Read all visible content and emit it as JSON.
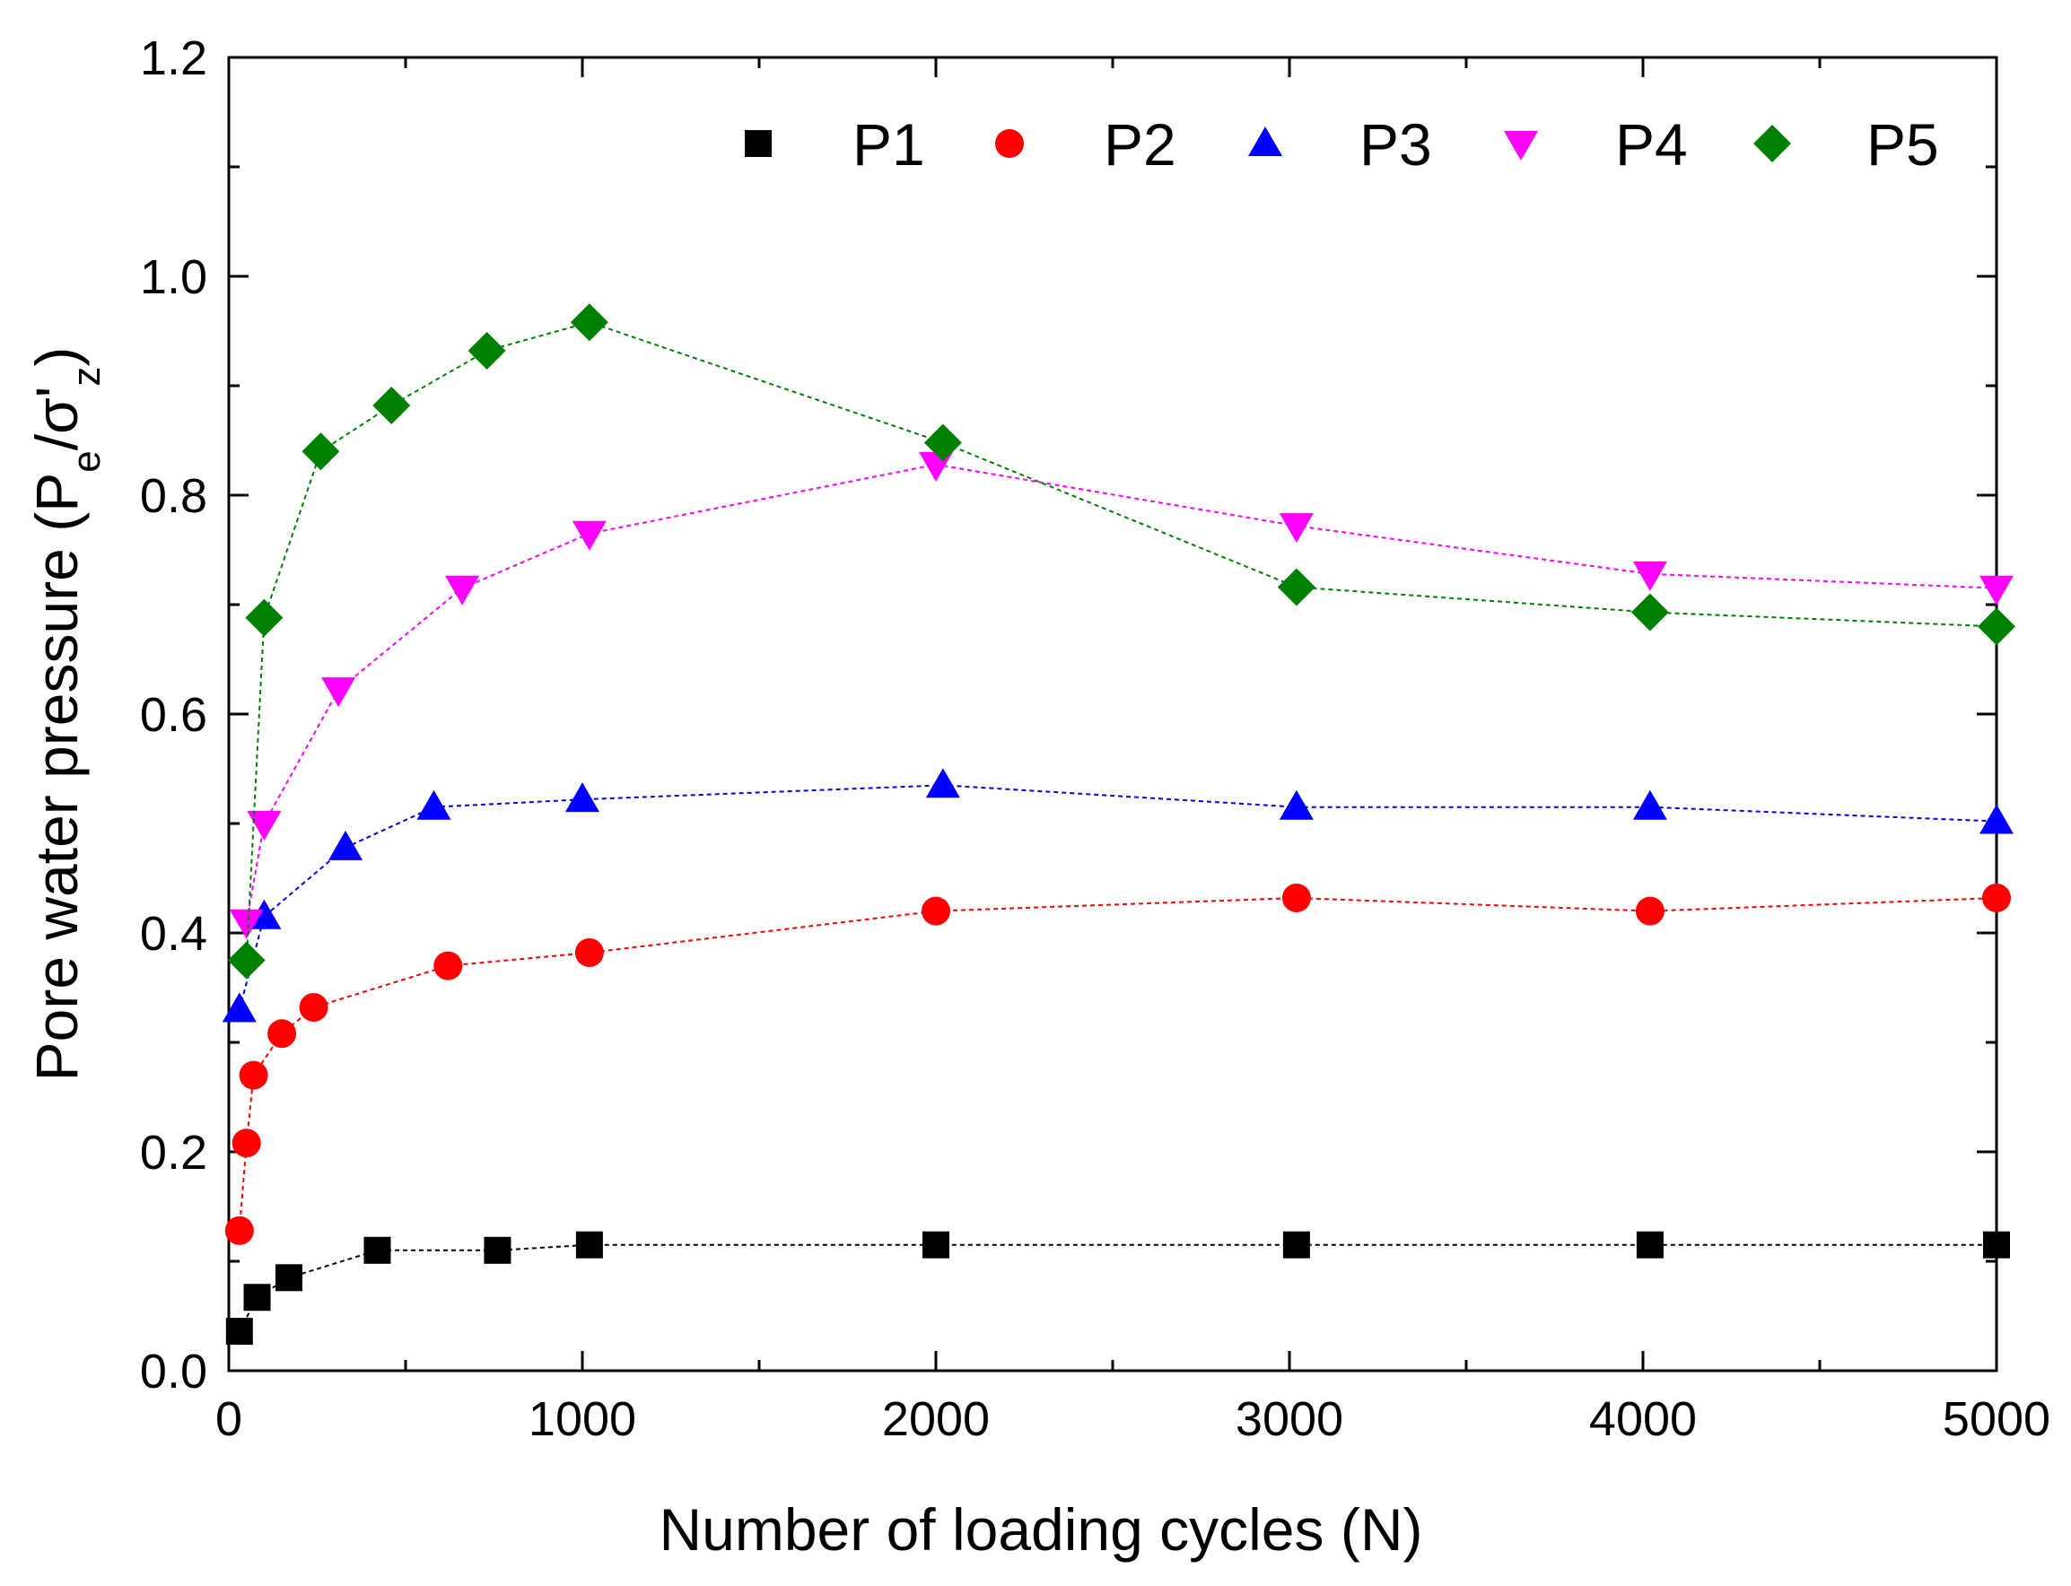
{
  "chart_data": {
    "type": "scatter",
    "xlabel": "Number of loading cycles (N)",
    "ylabel": {
      "prefix": "Pore water pressure (P",
      "sub1": "e",
      "mid": "/σ'",
      "sub2": "z",
      "suffix": ")"
    },
    "xlim": [
      0,
      5000
    ],
    "ylim": [
      0.0,
      1.2
    ],
    "xticks": [
      0,
      1000,
      2000,
      3000,
      4000,
      5000
    ],
    "xtick_labels": [
      "0",
      "1000",
      "2000",
      "3000",
      "4000",
      "5000"
    ],
    "yticks": [
      0.0,
      0.2,
      0.4,
      0.6,
      0.8,
      1.0,
      1.2
    ],
    "ytick_labels": [
      "0.0",
      "0.2",
      "0.4",
      "0.6",
      "0.8",
      "1.0",
      "1.2"
    ],
    "grid": false,
    "legend_position": "top-right",
    "series": [
      {
        "name": "P1",
        "color": "#000000",
        "marker": "square",
        "x": [
          30,
          80,
          170,
          420,
          760,
          1020,
          2000,
          3020,
          4020,
          5000
        ],
        "y": [
          0.036,
          0.067,
          0.085,
          0.11,
          0.11,
          0.115,
          0.115,
          0.115,
          0.115,
          0.115
        ]
      },
      {
        "name": "P2",
        "color": "#ff0000",
        "marker": "circle",
        "x": [
          30,
          50,
          70,
          150,
          240,
          620,
          1020,
          2000,
          3020,
          4020,
          5000
        ],
        "y": [
          0.128,
          0.208,
          0.27,
          0.308,
          0.332,
          0.37,
          0.382,
          0.42,
          0.432,
          0.42,
          0.432
        ]
      },
      {
        "name": "P3",
        "color": "#0000ff",
        "marker": "triangle-up",
        "x": [
          30,
          100,
          330,
          580,
          1000,
          2020,
          3020,
          4020,
          5000
        ],
        "y": [
          0.33,
          0.415,
          0.478,
          0.515,
          0.522,
          0.535,
          0.515,
          0.515,
          0.502
        ]
      },
      {
        "name": "P4",
        "color": "#ff00ff",
        "marker": "triangle-down",
        "x": [
          50,
          100,
          310,
          660,
          1020,
          2000,
          3020,
          4020,
          5000
        ],
        "y": [
          0.41,
          0.5,
          0.622,
          0.715,
          0.765,
          0.828,
          0.772,
          0.728,
          0.715
        ]
      },
      {
        "name": "P5",
        "color": "#008000",
        "marker": "diamond",
        "x": [
          50,
          100,
          260,
          460,
          730,
          1020,
          2020,
          3020,
          4020,
          5000
        ],
        "y": [
          0.375,
          0.688,
          0.84,
          0.882,
          0.932,
          0.958,
          0.848,
          0.716,
          0.693,
          0.68
        ]
      }
    ]
  }
}
